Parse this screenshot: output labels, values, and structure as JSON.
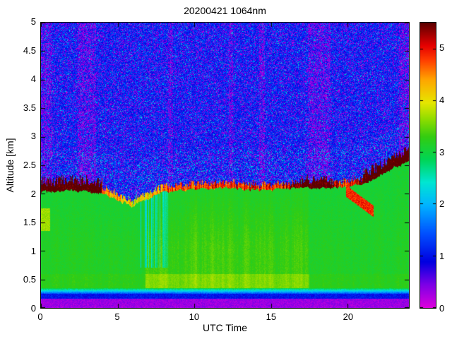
{
  "chart_data": {
    "type": "heatmap",
    "title": "20200421 1064nm",
    "xlabel": "UTC Time",
    "ylabel": "Altitude [km]",
    "xlim": [
      0,
      24
    ],
    "ylim": [
      0,
      5
    ],
    "xticks": [
      "0",
      "5",
      "10",
      "15",
      "20"
    ],
    "xtick_values": [
      0,
      5,
      10,
      15,
      20
    ],
    "yticks": [
      "0",
      "0.5",
      "1",
      "1.5",
      "2",
      "2.5",
      "3",
      "3.5",
      "4",
      "4.5",
      "5"
    ],
    "ytick_values": [
      0,
      0.5,
      1,
      1.5,
      2,
      2.5,
      3,
      3.5,
      4,
      4.5,
      5
    ],
    "grid": false,
    "legend": "none",
    "colorbar": {
      "vmin": 0,
      "vmax": 5.5,
      "ticks": [
        "0",
        "1",
        "2",
        "3",
        "4",
        "5"
      ],
      "tick_values": [
        0,
        1,
        2,
        3,
        4,
        5
      ],
      "colormap": [
        [
          0.0,
          "#dc00dc"
        ],
        [
          0.08,
          "#7d00e6"
        ],
        [
          0.16,
          "#0000e0"
        ],
        [
          0.26,
          "#0050ff"
        ],
        [
          0.36,
          "#00b4ff"
        ],
        [
          0.44,
          "#00e6d2"
        ],
        [
          0.52,
          "#00d555"
        ],
        [
          0.6,
          "#33cc11"
        ],
        [
          0.66,
          "#8cdc00"
        ],
        [
          0.72,
          "#e6e600"
        ],
        [
          0.8,
          "#ffa500"
        ],
        [
          0.87,
          "#ff3c00"
        ],
        [
          0.92,
          "#e60000"
        ],
        [
          1.0,
          "#5c0000"
        ]
      ]
    },
    "heatmap_model": {
      "seed": 20200421,
      "description": "Lidar attenuated backscatter time-height speckle image: magenta surface band below 0.16 km, thin blue band near 0.2 km, green aerosol boundary layer up to ~2 km with yellow-green vertical streaks, bright yellow/red/dark-red layer top near 2-2.2 km rising to ~2.6 km after 22 UTC, blue/magenta shot-noise speckle above with magenta-heavy vertical stripes",
      "bl_top_points": [
        [
          0,
          2.02
        ],
        [
          2,
          2.06
        ],
        [
          4,
          2.0
        ],
        [
          5,
          1.9
        ],
        [
          6,
          1.78
        ],
        [
          6.8,
          1.9
        ],
        [
          7.5,
          2.0
        ],
        [
          8,
          2.02
        ],
        [
          10,
          2.06
        ],
        [
          12,
          2.1
        ],
        [
          14,
          2.06
        ],
        [
          16,
          2.1
        ],
        [
          18,
          2.1
        ],
        [
          20,
          2.12
        ],
        [
          21,
          2.18
        ],
        [
          22,
          2.32
        ],
        [
          23,
          2.45
        ],
        [
          24,
          2.58
        ]
      ],
      "cap_value_points": [
        [
          0,
          5.6
        ],
        [
          3.8,
          5.6
        ],
        [
          4.2,
          4.4
        ],
        [
          6.5,
          4.0
        ],
        [
          8,
          4.6
        ],
        [
          9,
          4.9
        ],
        [
          10,
          4.7
        ],
        [
          11,
          4.9
        ],
        [
          12,
          4.8
        ],
        [
          13,
          5.0
        ],
        [
          14,
          4.8
        ],
        [
          15,
          4.9
        ],
        [
          16,
          5.1
        ],
        [
          17,
          5.6
        ],
        [
          19,
          5.5
        ],
        [
          19.6,
          4.8
        ],
        [
          20.5,
          5.0
        ],
        [
          21,
          5.6
        ],
        [
          24,
          5.7
        ]
      ],
      "cap_forced_ranges": [
        [
          0,
          3.9
        ],
        [
          17,
          19
        ],
        [
          21,
          24
        ]
      ],
      "noise_stripes": [
        [
          0,
          0.75
        ],
        [
          2.4,
          3.6
        ],
        [
          8.3,
          8.6
        ],
        [
          12.25,
          12.55
        ],
        [
          14.25,
          14.6
        ],
        [
          17.4,
          18.9
        ],
        [
          23.35,
          24
        ]
      ],
      "cyan_column_range": [
        6.5,
        8.3
      ],
      "red_blob": {
        "t": [
          19.9,
          21.7
        ],
        "z_start": 2.05,
        "slope": -0.2,
        "half_width": 0.1,
        "value": 4.9
      },
      "left_spot": {
        "t": [
          0,
          0.6
        ],
        "z": [
          1.35,
          1.75
        ],
        "value": 3.7
      },
      "surface_bands": {
        "magenta_top": 0.16,
        "blue_top": 0.25,
        "green_base": 0.35
      },
      "bl_base_value": 3.0,
      "streak_strong_range": [
        6.8,
        17.5
      ]
    }
  }
}
